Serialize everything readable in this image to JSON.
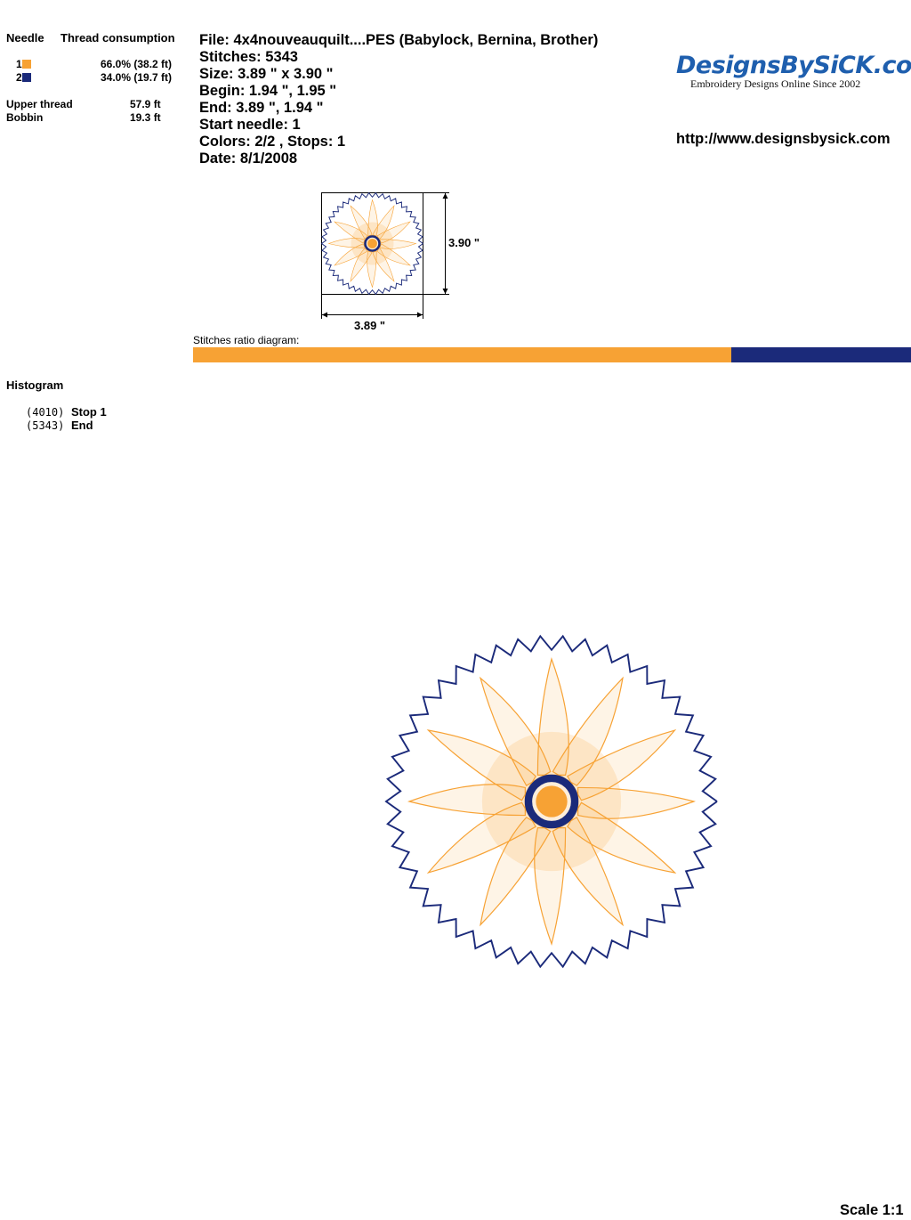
{
  "thread_table": {
    "header_needle": "Needle",
    "header_consumption": "Thread consumption",
    "needles": [
      {
        "number": "1",
        "color": "#F7A234",
        "consumption": "66.0% (38.2 ft)"
      },
      {
        "number": "2",
        "color": "#1B2A7A",
        "consumption": "34.0% (19.7 ft)"
      }
    ],
    "upper_thread_label": "Upper thread",
    "upper_thread_value": "57.9 ft",
    "bobbin_label": "Bobbin",
    "bobbin_value": "19.3 ft"
  },
  "info": {
    "file": "File: 4x4nouveauquilt....PES  (Babylock, Bernina, Brother)",
    "stitches": "Stitches: 5343",
    "size": "Size: 3.89 \" x 3.90 \"",
    "begin": "Begin: 1.94 \", 1.95 \"",
    "end": "End: 3.89 \", 1.94 \"",
    "start_needle": "Start needle: 1",
    "colors": "Colors: 2/2 , Stops: 1",
    "date": "Date: 8/1/2008"
  },
  "logo": {
    "name": "DesignsBySiCK.com",
    "tagline": "Embroidery Designs Online Since 2002"
  },
  "url": "http://www.designsbysick.com",
  "preview": {
    "height_label": "3.90 \"",
    "width_label": "3.89 \""
  },
  "ratio": {
    "label": "Stitches ratio diagram:",
    "segments": [
      {
        "fraction": 0.75,
        "color": "#F7A234"
      },
      {
        "fraction": 0.25,
        "color": "#1B2A7A"
      }
    ]
  },
  "histogram": {
    "title": "Histogram",
    "rows": [
      {
        "count": "(4010)",
        "label": "Stop 1"
      },
      {
        "count": "(5343)",
        "label": "End"
      }
    ]
  },
  "design": {
    "outer_color": "#1B2A7A",
    "petal_color": "#F7A234"
  },
  "scale": "Scale 1:1"
}
